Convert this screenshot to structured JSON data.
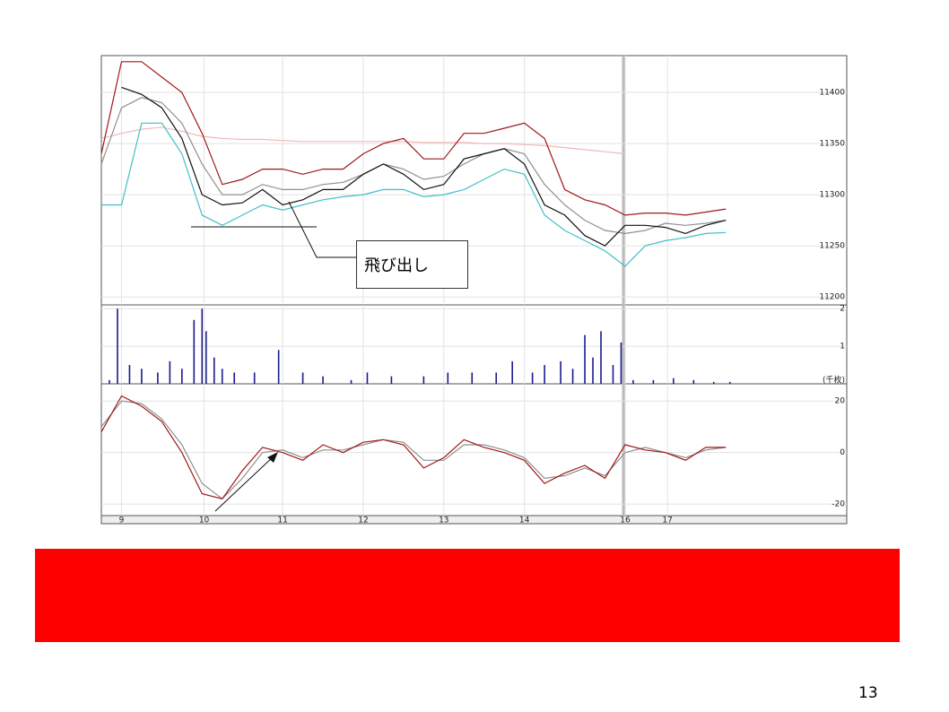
{
  "chart_data": [
    {
      "type": "line",
      "x": [
        0,
        5,
        10,
        15,
        20,
        25,
        30,
        35,
        40,
        45,
        50,
        55,
        60,
        65,
        70,
        75,
        80,
        85,
        90,
        95,
        100,
        105,
        110,
        115,
        120,
        125,
        130,
        135,
        140,
        145,
        150,
        155
      ],
      "xlim": [
        0,
        185
      ],
      "ylim": [
        11194,
        11436
      ],
      "yticks": [
        11200,
        11250,
        11300,
        11350,
        11400
      ],
      "grid": true,
      "series": [
        {
          "color": "#f2b8b8",
          "values": [
            11355,
            11360,
            11364,
            11366,
            11362,
            11357,
            11355,
            11354,
            11354,
            11353,
            11352,
            11352,
            11352,
            11352,
            11352,
            11352,
            11351,
            11351,
            11351,
            11350,
            11350,
            11349,
            11348,
            11346,
            11344,
            11342,
            11340,
            null,
            null,
            null,
            null,
            null
          ]
        },
        {
          "color": "#a01818",
          "values": [
            11340,
            11430,
            11430,
            11415,
            11400,
            11360,
            11310,
            11315,
            11325,
            11325,
            11320,
            11325,
            11325,
            11340,
            11350,
            11355,
            11335,
            11335,
            11360,
            11360,
            11365,
            11370,
            11355,
            11305,
            11295,
            11290,
            11280,
            11282,
            11282,
            11280,
            11283,
            11286
          ]
        },
        {
          "color": "#909090",
          "values": [
            11330,
            11385,
            11395,
            11390,
            11370,
            11330,
            11300,
            11300,
            11310,
            11305,
            11305,
            11310,
            11312,
            11320,
            11330,
            11325,
            11315,
            11318,
            11330,
            11340,
            11345,
            11340,
            11310,
            11290,
            11275,
            11265,
            11262,
            11265,
            11272,
            11270,
            11272,
            11275
          ]
        },
        {
          "color": "#40c0c8",
          "values": [
            11290,
            11290,
            11370,
            11370,
            11340,
            11280,
            11270,
            11280,
            11290,
            11285,
            11290,
            11295,
            11298,
            11300,
            11305,
            11305,
            11298,
            11300,
            11305,
            11315,
            11325,
            11320,
            11280,
            11265,
            11255,
            11245,
            11230,
            11250,
            11255,
            11258,
            11262,
            11263
          ]
        },
        {
          "color": "#111111",
          "values": [
            null,
            11405,
            11398,
            11385,
            11355,
            11300,
            11290,
            11292,
            11305,
            11290,
            11295,
            11305,
            11305,
            11320,
            11330,
            11320,
            11305,
            11310,
            11335,
            11340,
            11345,
            11330,
            11290,
            11280,
            11260,
            11250,
            11270,
            11270,
            11268,
            11262,
            11270,
            11275
          ]
        }
      ],
      "annotation": "飛び出し"
    },
    {
      "type": "bar",
      "x": [
        2,
        4,
        7,
        10,
        14,
        17,
        20,
        23,
        25,
        26,
        28,
        30,
        33,
        38,
        44,
        50,
        55,
        62,
        66,
        72,
        80,
        86,
        92,
        98,
        102,
        107,
        110,
        114,
        117,
        120,
        122,
        124,
        127,
        129,
        132,
        137,
        142,
        147,
        152,
        156
      ],
      "values": [
        0.1,
        2.0,
        0.5,
        0.4,
        0.3,
        0.6,
        0.4,
        1.7,
        2.0,
        1.4,
        0.7,
        0.4,
        0.3,
        0.3,
        0.9,
        0.3,
        0.2,
        0.1,
        0.3,
        0.2,
        0.2,
        0.3,
        0.3,
        0.3,
        0.6,
        0.3,
        0.5,
        0.6,
        0.4,
        1.3,
        0.7,
        1.4,
        0.5,
        1.1,
        0.1,
        0.1,
        0.15,
        0.1,
        0.05,
        0.05
      ],
      "color": "#1a1a8c",
      "xlim": [
        0,
        185
      ],
      "ylim": [
        0,
        2.1
      ],
      "yticks": [
        1,
        2
      ],
      "y_unit_label": "(千枚)",
      "grid": true
    },
    {
      "type": "line",
      "x": [
        0,
        5,
        10,
        15,
        20,
        25,
        30,
        35,
        40,
        45,
        50,
        55,
        60,
        65,
        70,
        75,
        80,
        85,
        90,
        95,
        100,
        105,
        110,
        115,
        120,
        125,
        130,
        135,
        140,
        145,
        150,
        155
      ],
      "xlim": [
        0,
        185
      ],
      "ylim": [
        -24.5,
        26
      ],
      "yticks": [
        -20,
        0,
        20
      ],
      "grid": true,
      "xticks": [
        {
          "value": 5,
          "label": "9"
        },
        {
          "value": 25.5,
          "label": "10"
        },
        {
          "value": 45,
          "label": "11"
        },
        {
          "value": 65,
          "label": "12"
        },
        {
          "value": 85,
          "label": "13"
        },
        {
          "value": 105,
          "label": "14"
        },
        {
          "value": 130,
          "label": "16"
        },
        {
          "value": 140.5,
          "label": "17"
        }
      ],
      "series": [
        {
          "color": "#909090",
          "values": [
            10,
            20,
            19,
            13,
            3,
            -12,
            -18,
            -10,
            0,
            1,
            -2,
            1,
            1,
            3,
            5,
            4,
            -3,
            -3,
            3,
            3,
            1,
            -2,
            -10,
            -9,
            -6,
            -9,
            0,
            2,
            0,
            -2,
            1,
            2
          ]
        },
        {
          "color": "#a01818",
          "values": [
            8,
            22,
            18,
            12,
            0,
            -16,
            -18,
            -7,
            2,
            0,
            -3,
            3,
            0,
            4,
            5,
            3,
            -6,
            -2,
            5,
            2,
            0,
            -3,
            -12,
            -8,
            -5,
            -10,
            3,
            1,
            0,
            -3,
            2,
            2
          ]
        }
      ]
    }
  ],
  "page_number": "13"
}
